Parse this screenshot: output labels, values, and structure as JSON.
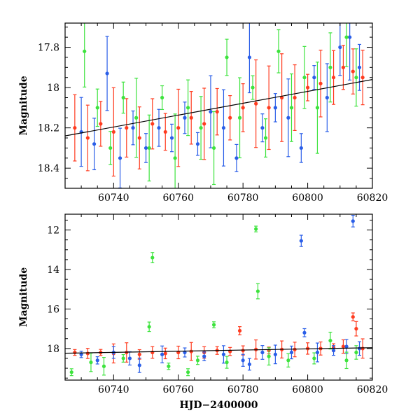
{
  "chart_data": [
    {
      "type": "scatter",
      "title": "",
      "xlabel": "",
      "ylabel": "Magnitude",
      "xlim": [
        60725,
        60820
      ],
      "ylim": [
        18.5,
        17.68
      ],
      "y_inverted": true,
      "grid": false,
      "legend": "none",
      "error_bars": true,
      "x_ticks": [
        60740,
        60760,
        60780,
        60800,
        60820
      ],
      "x_tick_labels": [
        "60740",
        "60760",
        "60780",
        "60800",
        "60820"
      ],
      "y_ticks": [
        17.8,
        18,
        18.2,
        18.4
      ],
      "y_tick_labels": [
        "17.8",
        "18",
        "18.2",
        "18.4"
      ],
      "trend_line": {
        "x": [
          60725,
          60820
        ],
        "y": [
          18.24,
          17.96
        ],
        "color": "#000000"
      },
      "series": [
        {
          "color": "#ff3b1f",
          "points": [
            [
              60728,
              18.2
            ],
            [
              60732,
              18.25
            ],
            [
              60736,
              18.18
            ],
            [
              60740,
              18.22
            ],
            [
              60744,
              18.2
            ],
            [
              60748,
              18.25
            ],
            [
              60752,
              18.18
            ],
            [
              60756,
              18.22
            ],
            [
              60760,
              18.2
            ],
            [
              60764,
              18.15
            ],
            [
              60768,
              18.18
            ],
            [
              60772,
              18.12
            ],
            [
              60776,
              18.15
            ],
            [
              60780,
              18.1
            ],
            [
              60784,
              18.08
            ],
            [
              60788,
              18.1
            ],
            [
              60792,
              18.05
            ],
            [
              60796,
              18.05
            ],
            [
              60800,
              18.0
            ],
            [
              60804,
              17.98
            ],
            [
              60808,
              17.95
            ],
            [
              60811,
              17.9
            ],
            [
              60814,
              17.92
            ],
            [
              60817,
              17.95
            ]
          ]
        },
        {
          "color": "#2a5ee8",
          "points": [
            [
              60730,
              18.22
            ],
            [
              60734,
              18.28
            ],
            [
              60738,
              17.93
            ],
            [
              60742,
              18.35
            ],
            [
              60746,
              18.2
            ],
            [
              60750,
              18.3
            ],
            [
              60754,
              18.2
            ],
            [
              60758,
              18.25
            ],
            [
              60762,
              18.15
            ],
            [
              60766,
              18.28
            ],
            [
              60770,
              18.12
            ],
            [
              60774,
              18.2
            ],
            [
              60778,
              18.35
            ],
            [
              60782,
              17.85
            ],
            [
              60786,
              18.2
            ],
            [
              60790,
              18.1
            ],
            [
              60794,
              18.15
            ],
            [
              60798,
              18.3
            ],
            [
              60802,
              17.95
            ],
            [
              60806,
              18.05
            ],
            [
              60810,
              17.8
            ],
            [
              60813,
              17.75
            ],
            [
              60816,
              17.9
            ]
          ]
        },
        {
          "color": "#3de33d",
          "points": [
            [
              60731,
              17.82
            ],
            [
              60735,
              18.1
            ],
            [
              60739,
              18.3
            ],
            [
              60743,
              18.05
            ],
            [
              60747,
              18.15
            ],
            [
              60751,
              18.3
            ],
            [
              60755,
              18.05
            ],
            [
              60759,
              18.35
            ],
            [
              60763,
              18.1
            ],
            [
              60767,
              18.2
            ],
            [
              60771,
              18.3
            ],
            [
              60775,
              17.85
            ],
            [
              60779,
              18.15
            ],
            [
              60783,
              18.0
            ],
            [
              60787,
              18.25
            ],
            [
              60791,
              17.82
            ],
            [
              60795,
              18.1
            ],
            [
              60799,
              17.95
            ],
            [
              60803,
              18.1
            ],
            [
              60807,
              17.9
            ],
            [
              60812,
              17.75
            ],
            [
              60815,
              17.95
            ]
          ]
        }
      ]
    },
    {
      "type": "scatter",
      "title": "",
      "xlabel": "HJD−2400000",
      "ylabel": "Magnitude",
      "xlim": [
        60725,
        60820
      ],
      "ylim": [
        19.6,
        11.2
      ],
      "y_inverted": true,
      "grid": false,
      "legend": "none",
      "error_bars": true,
      "x_ticks": [
        60740,
        60760,
        60780,
        60800,
        60820
      ],
      "x_tick_labels": [
        "60740",
        "60760",
        "60780",
        "60800",
        "60820"
      ],
      "y_ticks": [
        12,
        14,
        16,
        18
      ],
      "y_tick_labels": [
        "12",
        "14",
        "16",
        "18"
      ],
      "trend_line": {
        "x": [
          60725,
          60820
        ],
        "y": [
          18.24,
          17.96
        ],
        "color": "#000000"
      },
      "series": [
        {
          "color": "#ff3b1f",
          "points": [
            [
              60728,
              18.2
            ],
            [
              60732,
              18.25
            ],
            [
              60736,
              18.2
            ],
            [
              60740,
              18.25
            ],
            [
              60744,
              18.2
            ],
            [
              60748,
              18.3
            ],
            [
              60752,
              18.2
            ],
            [
              60756,
              18.25
            ],
            [
              60760,
              18.2
            ],
            [
              60764,
              18.15
            ],
            [
              60768,
              18.2
            ],
            [
              60772,
              18.1
            ],
            [
              60776,
              18.15
            ],
            [
              60779,
              17.1
            ],
            [
              60780,
              18.1
            ],
            [
              60784,
              18.05
            ],
            [
              60788,
              18.1
            ],
            [
              60792,
              18.05
            ],
            [
              60796,
              18.05
            ],
            [
              60800,
              18.0
            ],
            [
              60804,
              18.0
            ],
            [
              60808,
              17.95
            ],
            [
              60811,
              17.9
            ],
            [
              60814,
              16.4
            ],
            [
              60815,
              17.0
            ],
            [
              60817,
              18.0
            ]
          ]
        },
        {
          "color": "#2a5ee8",
          "points": [
            [
              60730,
              18.3
            ],
            [
              60735,
              18.6
            ],
            [
              60740,
              18.2
            ],
            [
              60745,
              18.5
            ],
            [
              60748,
              18.85
            ],
            [
              60755,
              18.3
            ],
            [
              60762,
              18.2
            ],
            [
              60768,
              18.4
            ],
            [
              60774,
              18.3
            ],
            [
              60780,
              18.6
            ],
            [
              60782,
              18.8
            ],
            [
              60786,
              18.2
            ],
            [
              60790,
              18.3
            ],
            [
              60795,
              18.2
            ],
            [
              60798,
              12.55
            ],
            [
              60799,
              17.2
            ],
            [
              60803,
              18.2
            ],
            [
              60808,
              18.1
            ],
            [
              60812,
              17.9
            ],
            [
              60814,
              11.55
            ],
            [
              60816,
              18.0
            ]
          ]
        },
        {
          "color": "#3de33d",
          "points": [
            [
              60727,
              19.2
            ],
            [
              60733,
              18.7
            ],
            [
              60737,
              18.9
            ],
            [
              60743,
              18.5
            ],
            [
              60751,
              16.9
            ],
            [
              60752,
              13.4
            ],
            [
              60757,
              18.9
            ],
            [
              60763,
              19.2
            ],
            [
              60766,
              18.6
            ],
            [
              60771,
              16.8
            ],
            [
              60775,
              18.7
            ],
            [
              60784,
              11.95
            ],
            [
              60784.6,
              15.1
            ],
            [
              60788,
              18.4
            ],
            [
              60794,
              18.6
            ],
            [
              60802,
              18.5
            ],
            [
              60807,
              17.6
            ],
            [
              60812,
              18.6
            ],
            [
              60815,
              18.2
            ]
          ]
        }
      ]
    }
  ]
}
